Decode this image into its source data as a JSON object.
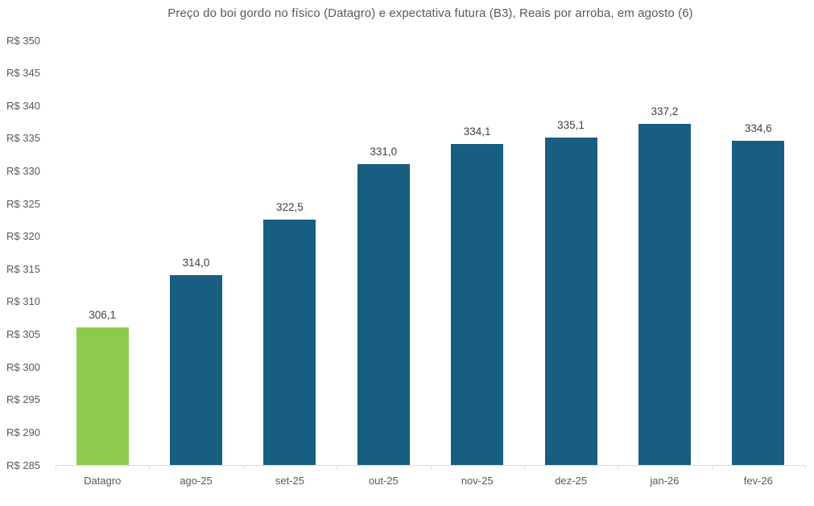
{
  "chart_data": {
    "type": "bar",
    "title": "Preço do boi gordo no físico (Datagro)  e expectativa futura (B3), Reais por arroba, em agosto (6)",
    "categories": [
      "Datagro",
      "ago-25",
      "set-25",
      "out-25",
      "nov-25",
      "dez-25",
      "jan-26",
      "fev-26"
    ],
    "values": [
      306.1,
      314.0,
      322.5,
      331.0,
      334.1,
      335.1,
      337.2,
      334.6
    ],
    "value_labels": [
      "306,1",
      "314,0",
      "322,5",
      "331,0",
      "334,1",
      "335,1",
      "337,2",
      "334,6"
    ],
    "bar_colors": [
      "#8ccb4e",
      "#175e80",
      "#175e80",
      "#175e80",
      "#175e80",
      "#175e80",
      "#175e80",
      "#175e80"
    ],
    "xlabel": "",
    "ylabel": "",
    "ylim": [
      285,
      350
    ],
    "ytick_step": 5,
    "ytick_prefix": "R$ ",
    "grid": false,
    "legend": false
  },
  "colors": {
    "highlight_bar": "#8ccb4e",
    "series_bar": "#175e80",
    "axis_line": "#d9d9d9",
    "axis_text": "#595959",
    "value_label_text": "#404040",
    "background": "#ffffff"
  }
}
